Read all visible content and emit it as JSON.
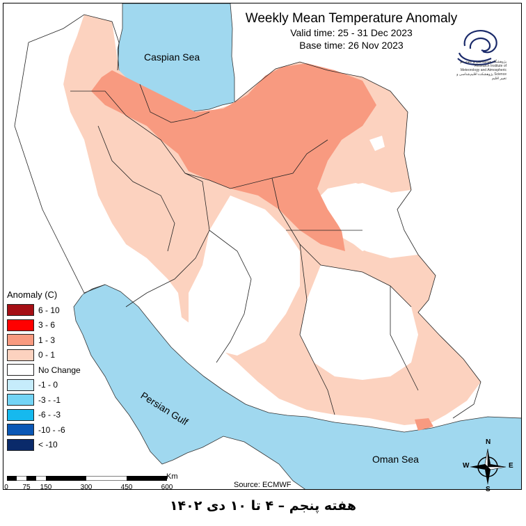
{
  "map": {
    "title": "Weekly Mean Temperature Anomaly",
    "valid_time": "Valid time: 25 - 31 Dec 2023",
    "base_time": "Base time: 26 Nov 2023",
    "caspian_label": "Caspian Sea",
    "persian_gulf_label": "Persian Gulf",
    "oman_label": "Oman Sea",
    "source": "Source: ECMWF",
    "footer": "هفته پنجم – ۴ تا ۱۰ دی ۱۴۰۲",
    "logo_text": "پژوهشگاه هواشناسی و علوم جو\nResearch Institute of Meteorology and Atmospheric Science\nپژوهشکده اقلیم‌شناسی و تغییر اقلیم",
    "colors": {
      "water": "#a0d8ef",
      "land": "#ffffff",
      "anom_0_1": "#fcd2bf",
      "anom_1_3": "#f89a80"
    }
  },
  "legend": {
    "title": "Anomaly (C)",
    "items": [
      {
        "label": "6 - 10",
        "color": "#a50f15"
      },
      {
        "label": "3 - 6",
        "color": "#ff0000"
      },
      {
        "label": "1 - 3",
        "color": "#f89a80"
      },
      {
        "label": "0 - 1",
        "color": "#fcd2bf"
      },
      {
        "label": "No Change",
        "color": "#ffffff"
      },
      {
        "label": "-1 - 0",
        "color": "#c6ecfb"
      },
      {
        "label": "-3 - -1",
        "color": "#73d4f5"
      },
      {
        "label": "-6 - -3",
        "color": "#16b9ee"
      },
      {
        "label": "-10 - -6",
        "color": "#0a57b5"
      },
      {
        "label": "< -10",
        "color": "#0a2a6a"
      }
    ]
  },
  "scale": {
    "unit": "Km",
    "ticks": [
      "0",
      "75",
      "150",
      "300",
      "450",
      "600"
    ]
  },
  "compass": {
    "n": "N",
    "s": "S",
    "e": "E",
    "w": "W"
  }
}
